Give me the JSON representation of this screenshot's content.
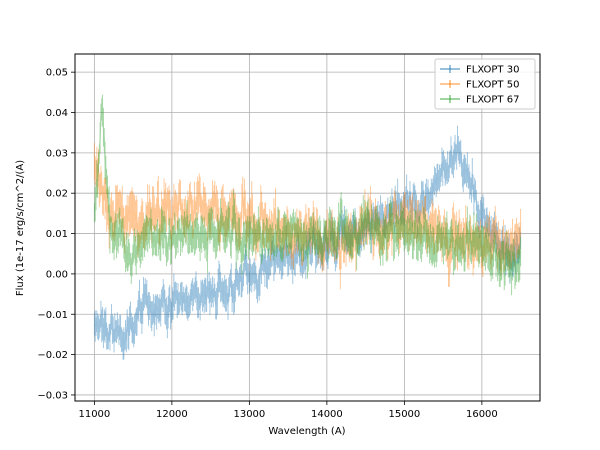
{
  "chart_data": {
    "type": "line",
    "title": "",
    "xlabel": "Wavelength (A)",
    "ylabel": "Flux (1e-17 erg/s/cm^2/(A)",
    "xlim": [
      10750,
      16750
    ],
    "ylim": [
      -0.0315,
      0.0545
    ],
    "xticks": [
      11000,
      12000,
      13000,
      14000,
      15000,
      16000
    ],
    "xtick_labels": [
      "11000",
      "12000",
      "13000",
      "14000",
      "15000",
      "16000"
    ],
    "yticks": [
      -0.03,
      -0.02,
      -0.01,
      0.0,
      0.01,
      0.02,
      0.03,
      0.04,
      0.05
    ],
    "ytick_labels": [
      "−0.03",
      "−0.02",
      "−0.01",
      "0.00",
      "0.01",
      "0.02",
      "0.03",
      "0.04",
      "0.05"
    ],
    "grid": true,
    "legend_position": "top-right",
    "x_range": [
      11000,
      16500
    ],
    "series": [
      {
        "name": "FLXOPT 30",
        "color": "#1f77b4",
        "anchors": [
          [
            11000,
            -0.012
          ],
          [
            11100,
            -0.011
          ],
          [
            11200,
            -0.014
          ],
          [
            11300,
            -0.016
          ],
          [
            11400,
            -0.013
          ],
          [
            11500,
            -0.011
          ],
          [
            11700,
            -0.008
          ],
          [
            11900,
            -0.007
          ],
          [
            12100,
            -0.006
          ],
          [
            12300,
            -0.005
          ],
          [
            12500,
            -0.004
          ],
          [
            12700,
            -0.003
          ],
          [
            12900,
            -0.002
          ],
          [
            13100,
            0.0
          ],
          [
            13300,
            0.003
          ],
          [
            13500,
            0.005
          ],
          [
            13700,
            0.006
          ],
          [
            13900,
            0.007
          ],
          [
            14100,
            0.008
          ],
          [
            14300,
            0.01
          ],
          [
            14500,
            0.012
          ],
          [
            14700,
            0.014
          ],
          [
            14900,
            0.016
          ],
          [
            15100,
            0.017
          ],
          [
            15300,
            0.02
          ],
          [
            15450,
            0.025
          ],
          [
            15600,
            0.03
          ],
          [
            15700,
            0.031
          ],
          [
            15800,
            0.025
          ],
          [
            15900,
            0.02
          ],
          [
            16000,
            0.014
          ],
          [
            16100,
            0.01
          ],
          [
            16200,
            0.007
          ],
          [
            16300,
            0.006
          ],
          [
            16400,
            0.005
          ],
          [
            16500,
            0.006
          ]
        ],
        "noise": 0.0035,
        "seed": 11
      },
      {
        "name": "FLXOPT 50",
        "color": "#ff7f0e",
        "anchors": [
          [
            11000,
            0.025
          ],
          [
            11100,
            0.02
          ],
          [
            11200,
            0.017
          ],
          [
            11300,
            0.015
          ],
          [
            11500,
            0.014
          ],
          [
            11700,
            0.015
          ],
          [
            11900,
            0.014
          ],
          [
            12100,
            0.015
          ],
          [
            12300,
            0.015
          ],
          [
            12500,
            0.016
          ],
          [
            12700,
            0.015
          ],
          [
            12900,
            0.014
          ],
          [
            13100,
            0.012
          ],
          [
            13300,
            0.011
          ],
          [
            13500,
            0.01
          ],
          [
            13700,
            0.01
          ],
          [
            13900,
            0.009
          ],
          [
            14100,
            0.008
          ],
          [
            14300,
            0.009
          ],
          [
            14500,
            0.01
          ],
          [
            14700,
            0.011
          ],
          [
            14900,
            0.012
          ],
          [
            15100,
            0.013
          ],
          [
            15300,
            0.01
          ],
          [
            15500,
            0.008
          ],
          [
            15700,
            0.009
          ],
          [
            15900,
            0.008
          ],
          [
            16100,
            0.007
          ],
          [
            16300,
            0.006
          ],
          [
            16500,
            0.007
          ]
        ],
        "noise": 0.0045,
        "seed": 29
      },
      {
        "name": "FLXOPT 67",
        "color": "#2ca02c",
        "anchors": [
          [
            11000,
            0.018
          ],
          [
            11050,
            0.025
          ],
          [
            11100,
            0.043
          ],
          [
            11150,
            0.025
          ],
          [
            11200,
            0.012
          ],
          [
            11300,
            0.009
          ],
          [
            11400,
            0.007
          ],
          [
            11500,
            0.006
          ],
          [
            11700,
            0.01
          ],
          [
            11900,
            0.009
          ],
          [
            12100,
            0.011
          ],
          [
            12300,
            0.01
          ],
          [
            12500,
            0.009
          ],
          [
            12700,
            0.009
          ],
          [
            12900,
            0.008
          ],
          [
            13100,
            0.009
          ],
          [
            13300,
            0.008
          ],
          [
            13500,
            0.009
          ],
          [
            13700,
            0.009
          ],
          [
            13900,
            0.01
          ],
          [
            14100,
            0.009
          ],
          [
            14300,
            0.01
          ],
          [
            14500,
            0.012
          ],
          [
            14700,
            0.011
          ],
          [
            14900,
            0.01
          ],
          [
            15100,
            0.009
          ],
          [
            15300,
            0.008
          ],
          [
            15500,
            0.009
          ],
          [
            15700,
            0.008
          ],
          [
            15900,
            0.007
          ],
          [
            16100,
            0.006
          ],
          [
            16300,
            0.0
          ],
          [
            16400,
            0.004
          ],
          [
            16500,
            0.005
          ]
        ],
        "noise": 0.004,
        "seed": 47
      }
    ]
  }
}
